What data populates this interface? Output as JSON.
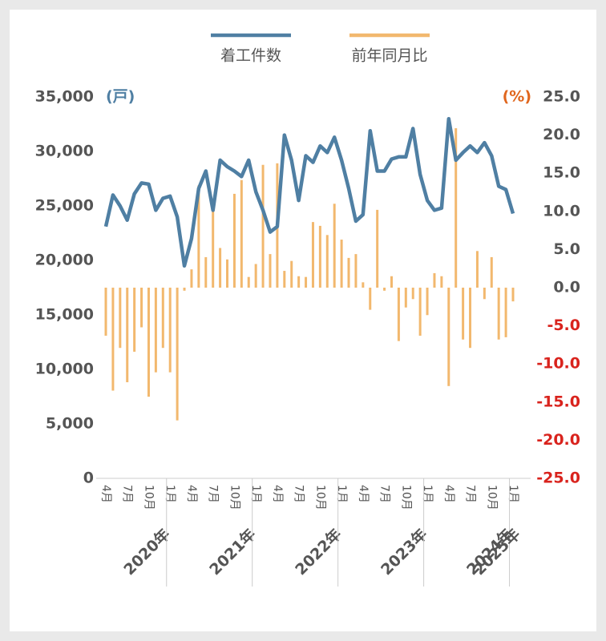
{
  "chart_data": {
    "type": "bar_line",
    "categories": [
      "4月",
      null,
      null,
      "7月",
      null,
      null,
      "10月",
      null,
      null,
      "1月",
      null,
      null,
      "4月",
      null,
      null,
      "7月",
      null,
      null,
      "10月",
      null,
      null,
      "1月",
      null,
      null,
      "4月",
      null,
      null,
      "7月",
      null,
      null,
      "10月",
      null,
      null,
      "1月",
      null,
      null,
      "4月",
      null,
      null,
      "7月",
      null,
      null,
      "10月",
      null,
      null,
      "1月",
      null,
      null,
      "4月",
      null,
      null,
      "7月",
      null,
      null,
      "10月",
      null,
      null,
      "1月"
    ],
    "year_labels": [
      "2020年",
      "2021年",
      "2022年",
      "2023年",
      "2024年",
      "2025年"
    ],
    "y_unit": "(戸)",
    "y2_unit": "(%)",
    "series": [
      {
        "name": "着工件数",
        "type": "line",
        "color": "#4f7fa3",
        "axis": "y",
        "values": [
          23100,
          26000,
          25000,
          23700,
          26100,
          27100,
          27000,
          24600,
          25700,
          25900,
          24000,
          19500,
          22000,
          26600,
          28200,
          24600,
          29200,
          28600,
          28200,
          27700,
          29200,
          26300,
          24600,
          22600,
          23100,
          31500,
          29200,
          25500,
          29600,
          29000,
          30500,
          29900,
          31300,
          29200,
          26600,
          23600,
          24200,
          31900,
          28200,
          28200,
          29300,
          29500,
          29500,
          32100,
          27900,
          25500,
          24600,
          24800,
          33000,
          29200,
          29900,
          30500,
          29900,
          30800,
          29600,
          26800,
          26500,
          24300
        ]
      },
      {
        "name": "前年同月比",
        "type": "bar",
        "color": "#f2b86e",
        "axis": "y2",
        "values": [
          -6.3,
          -13.5,
          -7.9,
          -12.4,
          -8.4,
          -5.2,
          -14.3,
          -11.1,
          -7.9,
          -11.1,
          -17.4,
          -0.4,
          2.4,
          13.4,
          4.0,
          11.3,
          5.2,
          3.7,
          12.3,
          14.1,
          1.4,
          3.1,
          16.1,
          4.4,
          16.3,
          2.2,
          3.5,
          1.5,
          1.4,
          8.6,
          8.1,
          6.9,
          11.0,
          6.3,
          3.9,
          4.4,
          0.7,
          -2.9,
          10.2,
          -0.4,
          1.5,
          -7.0,
          -2.6,
          -1.5,
          -6.3,
          -3.6,
          1.9,
          1.5,
          -12.9,
          20.9,
          -6.8,
          -7.9,
          4.8,
          -1.5,
          4.0,
          -6.8,
          -6.5,
          -1.8
        ]
      }
    ],
    "ylim": [
      0,
      35000
    ],
    "yticks": [
      0,
      {
        "value": 5000,
        "label": "5,000"
      },
      {
        "value": 10000,
        "label": "10,000"
      },
      {
        "value": 15000,
        "label": "15,000"
      },
      {
        "value": 20000,
        "label": "20,000"
      },
      {
        "value": 25000,
        "label": "25,000"
      },
      {
        "value": 30000,
        "label": "30,000"
      },
      {
        "value": 35000,
        "label": "35,000"
      }
    ],
    "y2lim": [
      -25,
      25
    ],
    "y2ticks": [
      {
        "value": -25,
        "label": "-25.0"
      },
      {
        "value": -20,
        "label": "-20.0"
      },
      {
        "value": -15,
        "label": "-15.0"
      },
      {
        "value": -10,
        "label": "-10.0"
      },
      {
        "value": -5,
        "label": "-5.0"
      },
      {
        "value": 0,
        "label": "0.0"
      },
      {
        "value": 5,
        "label": "5.0"
      },
      {
        "value": 10,
        "label": "10.0"
      },
      {
        "value": 15,
        "label": "15.0"
      },
      {
        "value": 20,
        "label": "20.0"
      },
      {
        "value": 25,
        "label": "25.0"
      }
    ],
    "y2_negative_color": "#d9231d",
    "y2_unit_color": "#e0661d",
    "grid": false
  }
}
